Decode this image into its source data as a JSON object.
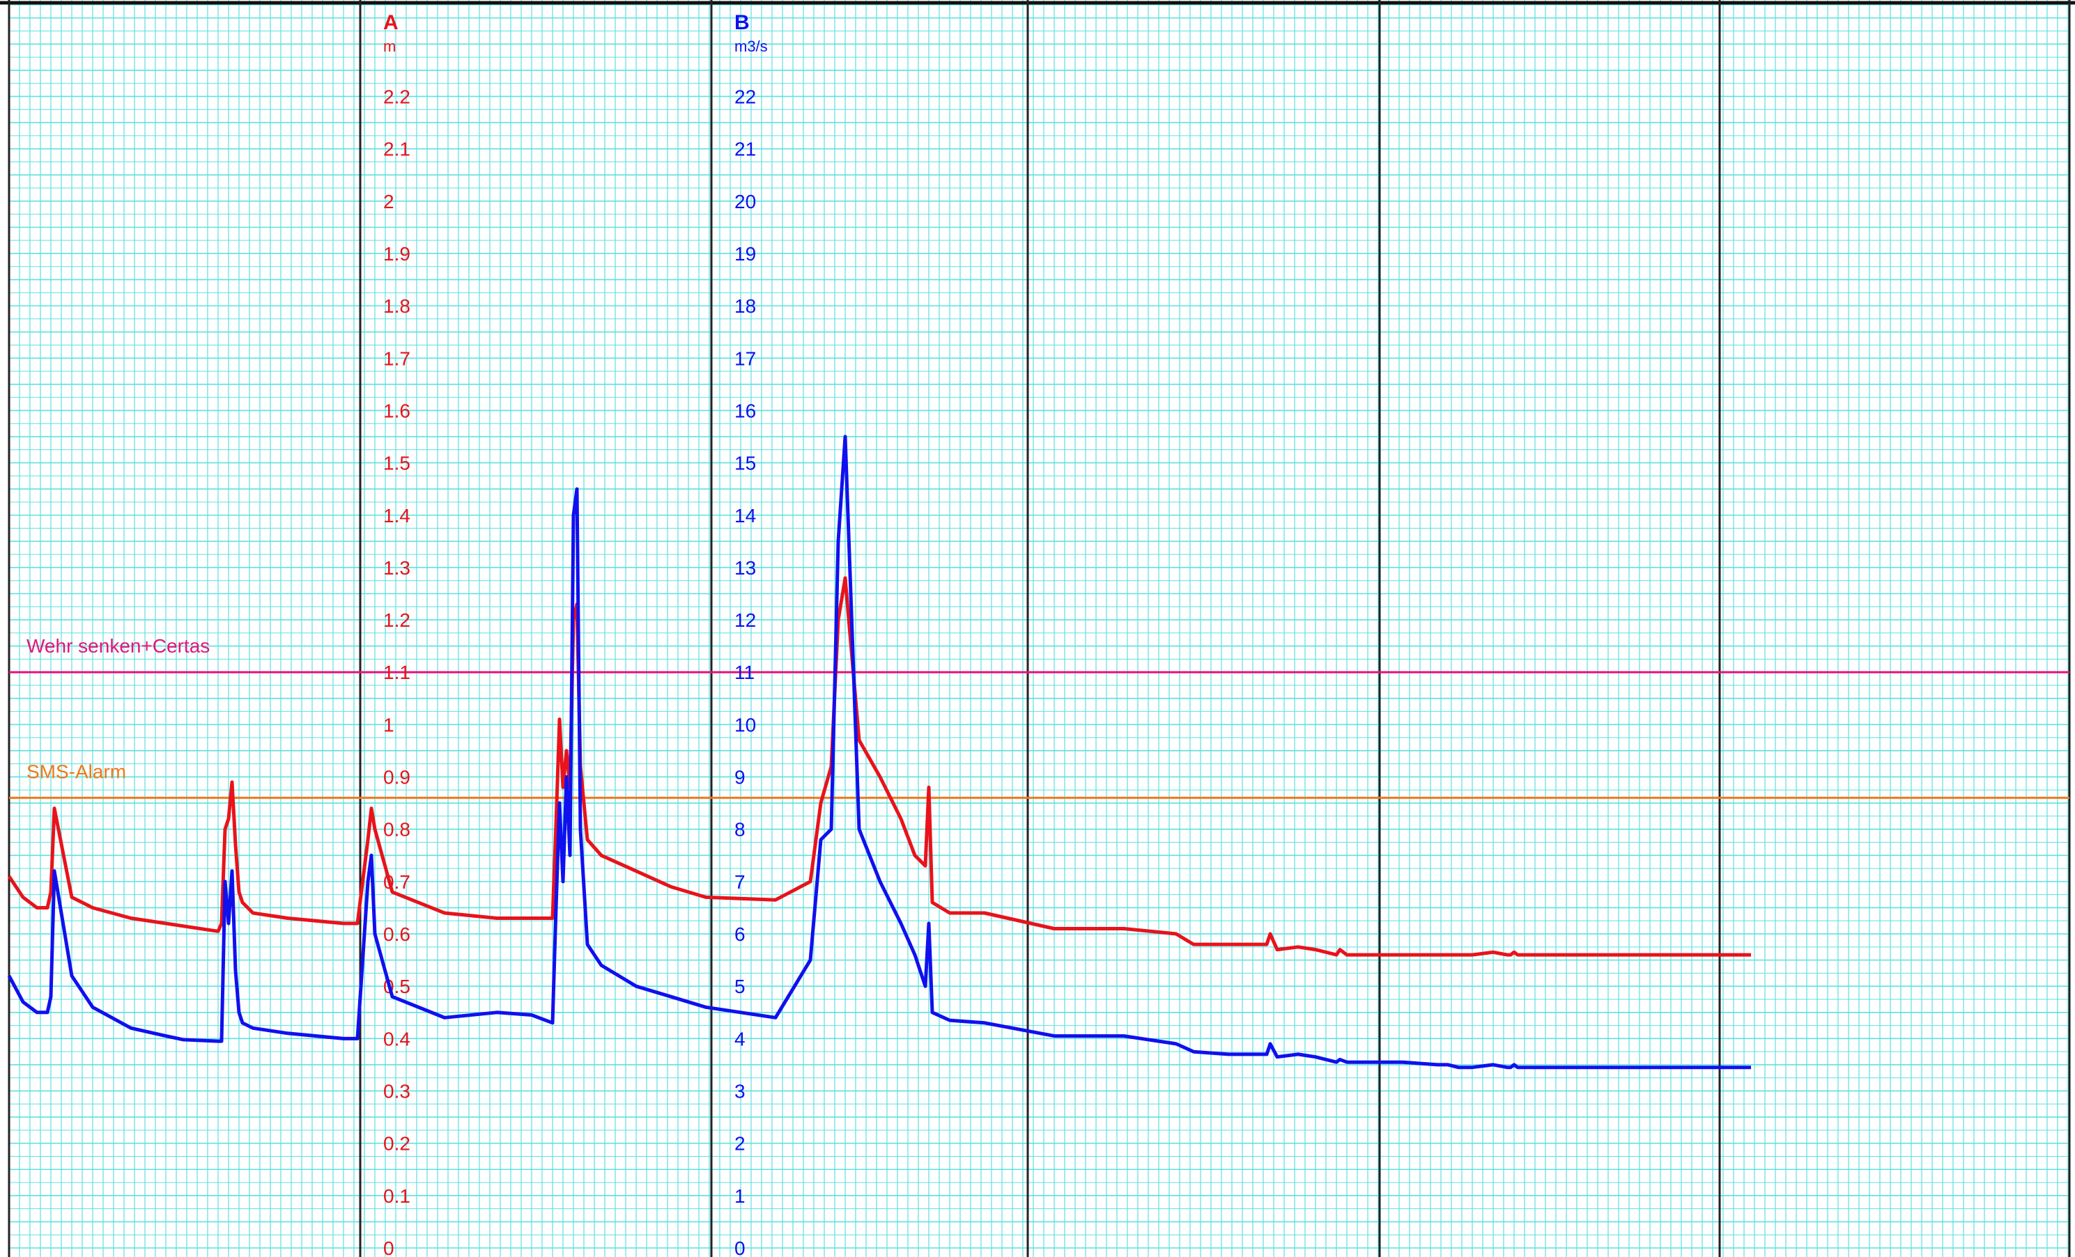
{
  "chart_data": {
    "type": "line",
    "axes": [
      {
        "id": "A",
        "label": "A",
        "unit": "m",
        "color": "#e8131b",
        "ylim": [
          0,
          2.4
        ],
        "ticks": [
          "0",
          "0.1",
          "0.2",
          "0.3",
          "0.4",
          "0.5",
          "0.6",
          "0.7",
          "0.8",
          "0.9",
          "1",
          "1.1",
          "1.2",
          "1.3",
          "1.4",
          "1.5",
          "1.6",
          "1.7",
          "1.8",
          "1.9",
          "2",
          "2.1",
          "2.2"
        ]
      },
      {
        "id": "B",
        "label": "B",
        "unit": "m3/s",
        "color": "#1010ee",
        "ylim": [
          0,
          24
        ],
        "ticks": [
          "0",
          "1",
          "2",
          "3",
          "4",
          "5",
          "6",
          "7",
          "8",
          "9",
          "10",
          "11",
          "12",
          "13",
          "14",
          "15",
          "16",
          "17",
          "18",
          "19",
          "20",
          "21",
          "22"
        ]
      }
    ],
    "x": [
      0,
      4,
      8,
      11,
      12,
      13,
      18,
      24,
      35,
      45,
      50,
      60,
      61,
      62,
      63,
      64,
      65,
      66,
      67,
      70,
      80,
      96,
      100,
      103,
      104,
      105,
      110,
      125,
      140,
      150,
      156,
      157,
      158,
      159,
      160,
      161,
      162,
      163,
      164,
      166,
      170,
      180,
      190,
      200,
      220,
      230,
      233,
      236,
      238,
      240,
      244,
      250,
      256,
      260,
      263,
      264,
      265,
      270,
      280,
      300,
      320,
      335,
      340,
      350,
      361,
      362,
      364,
      370,
      375,
      381,
      382,
      384,
      390,
      400,
      410,
      413,
      416,
      420,
      426,
      430,
      431,
      432,
      433,
      434,
      437,
      440,
      450,
      460,
      475,
      476,
      480,
      490,
      495,
      500
    ],
    "series": [
      {
        "axis": "A",
        "color": "#e8131b",
        "values": [
          0.71,
          0.67,
          0.65,
          0.65,
          0.68,
          0.84,
          0.67,
          0.65,
          0.63,
          0.62,
          0.615,
          0.605,
          0.62,
          0.8,
          0.82,
          0.89,
          0.77,
          0.68,
          0.66,
          0.64,
          0.63,
          0.62,
          0.62,
          0.78,
          0.84,
          0.8,
          0.68,
          0.64,
          0.63,
          0.63,
          0.63,
          0.81,
          1.01,
          0.88,
          0.95,
          0.88,
          1.2,
          1.23,
          0.92,
          0.78,
          0.75,
          0.72,
          0.69,
          0.67,
          0.665,
          0.7,
          0.85,
          0.92,
          1.2,
          1.28,
          0.97,
          0.9,
          0.82,
          0.75,
          0.73,
          0.88,
          0.66,
          0.64,
          0.64,
          0.61,
          0.61,
          0.6,
          0.58,
          0.58,
          0.58,
          0.6,
          0.57,
          0.575,
          0.57,
          0.56,
          0.57,
          0.56,
          0.56,
          0.56,
          0.56,
          0.56,
          0.56,
          0.56,
          0.565,
          0.56,
          0.56,
          0.565,
          0.56,
          0.56,
          0.56,
          0.56,
          0.56,
          0.56,
          0.56,
          0.56,
          0.56,
          0.56,
          0.56,
          0.56
        ]
      },
      {
        "axis": "B",
        "color": "#1010ee",
        "values": [
          5.2,
          4.7,
          4.5,
          4.5,
          4.8,
          7.2,
          5.2,
          4.6,
          4.2,
          4.05,
          3.98,
          3.95,
          3.95,
          7.0,
          6.2,
          7.2,
          5.3,
          4.5,
          4.3,
          4.2,
          4.1,
          4.0,
          4.0,
          7.0,
          7.5,
          6.0,
          4.8,
          4.4,
          4.5,
          4.45,
          4.3,
          6.5,
          8.5,
          7.0,
          9.0,
          7.5,
          14.0,
          14.5,
          8.0,
          5.8,
          5.4,
          5.0,
          4.8,
          4.6,
          4.4,
          5.5,
          7.8,
          8.0,
          13.5,
          15.5,
          8.0,
          7.0,
          6.2,
          5.6,
          5.0,
          6.2,
          4.5,
          4.35,
          4.3,
          4.05,
          4.05,
          3.9,
          3.75,
          3.7,
          3.7,
          3.9,
          3.65,
          3.7,
          3.65,
          3.55,
          3.6,
          3.55,
          3.55,
          3.55,
          3.5,
          3.5,
          3.45,
          3.45,
          3.5,
          3.45,
          3.45,
          3.5,
          3.45,
          3.45,
          3.45,
          3.45,
          3.45,
          3.45,
          3.45,
          3.45,
          3.45,
          3.45,
          3.45,
          3.45
        ]
      }
    ],
    "thresholds": [
      {
        "label": "Wehr senken+Certas",
        "value": 1.1,
        "axis": "A",
        "color": "#e8137a"
      },
      {
        "label": "SMS-Alarm",
        "value": 0.86,
        "axis": "A",
        "color": "#f07818"
      }
    ],
    "grid": true,
    "xlim": [
      0,
      595
    ]
  }
}
